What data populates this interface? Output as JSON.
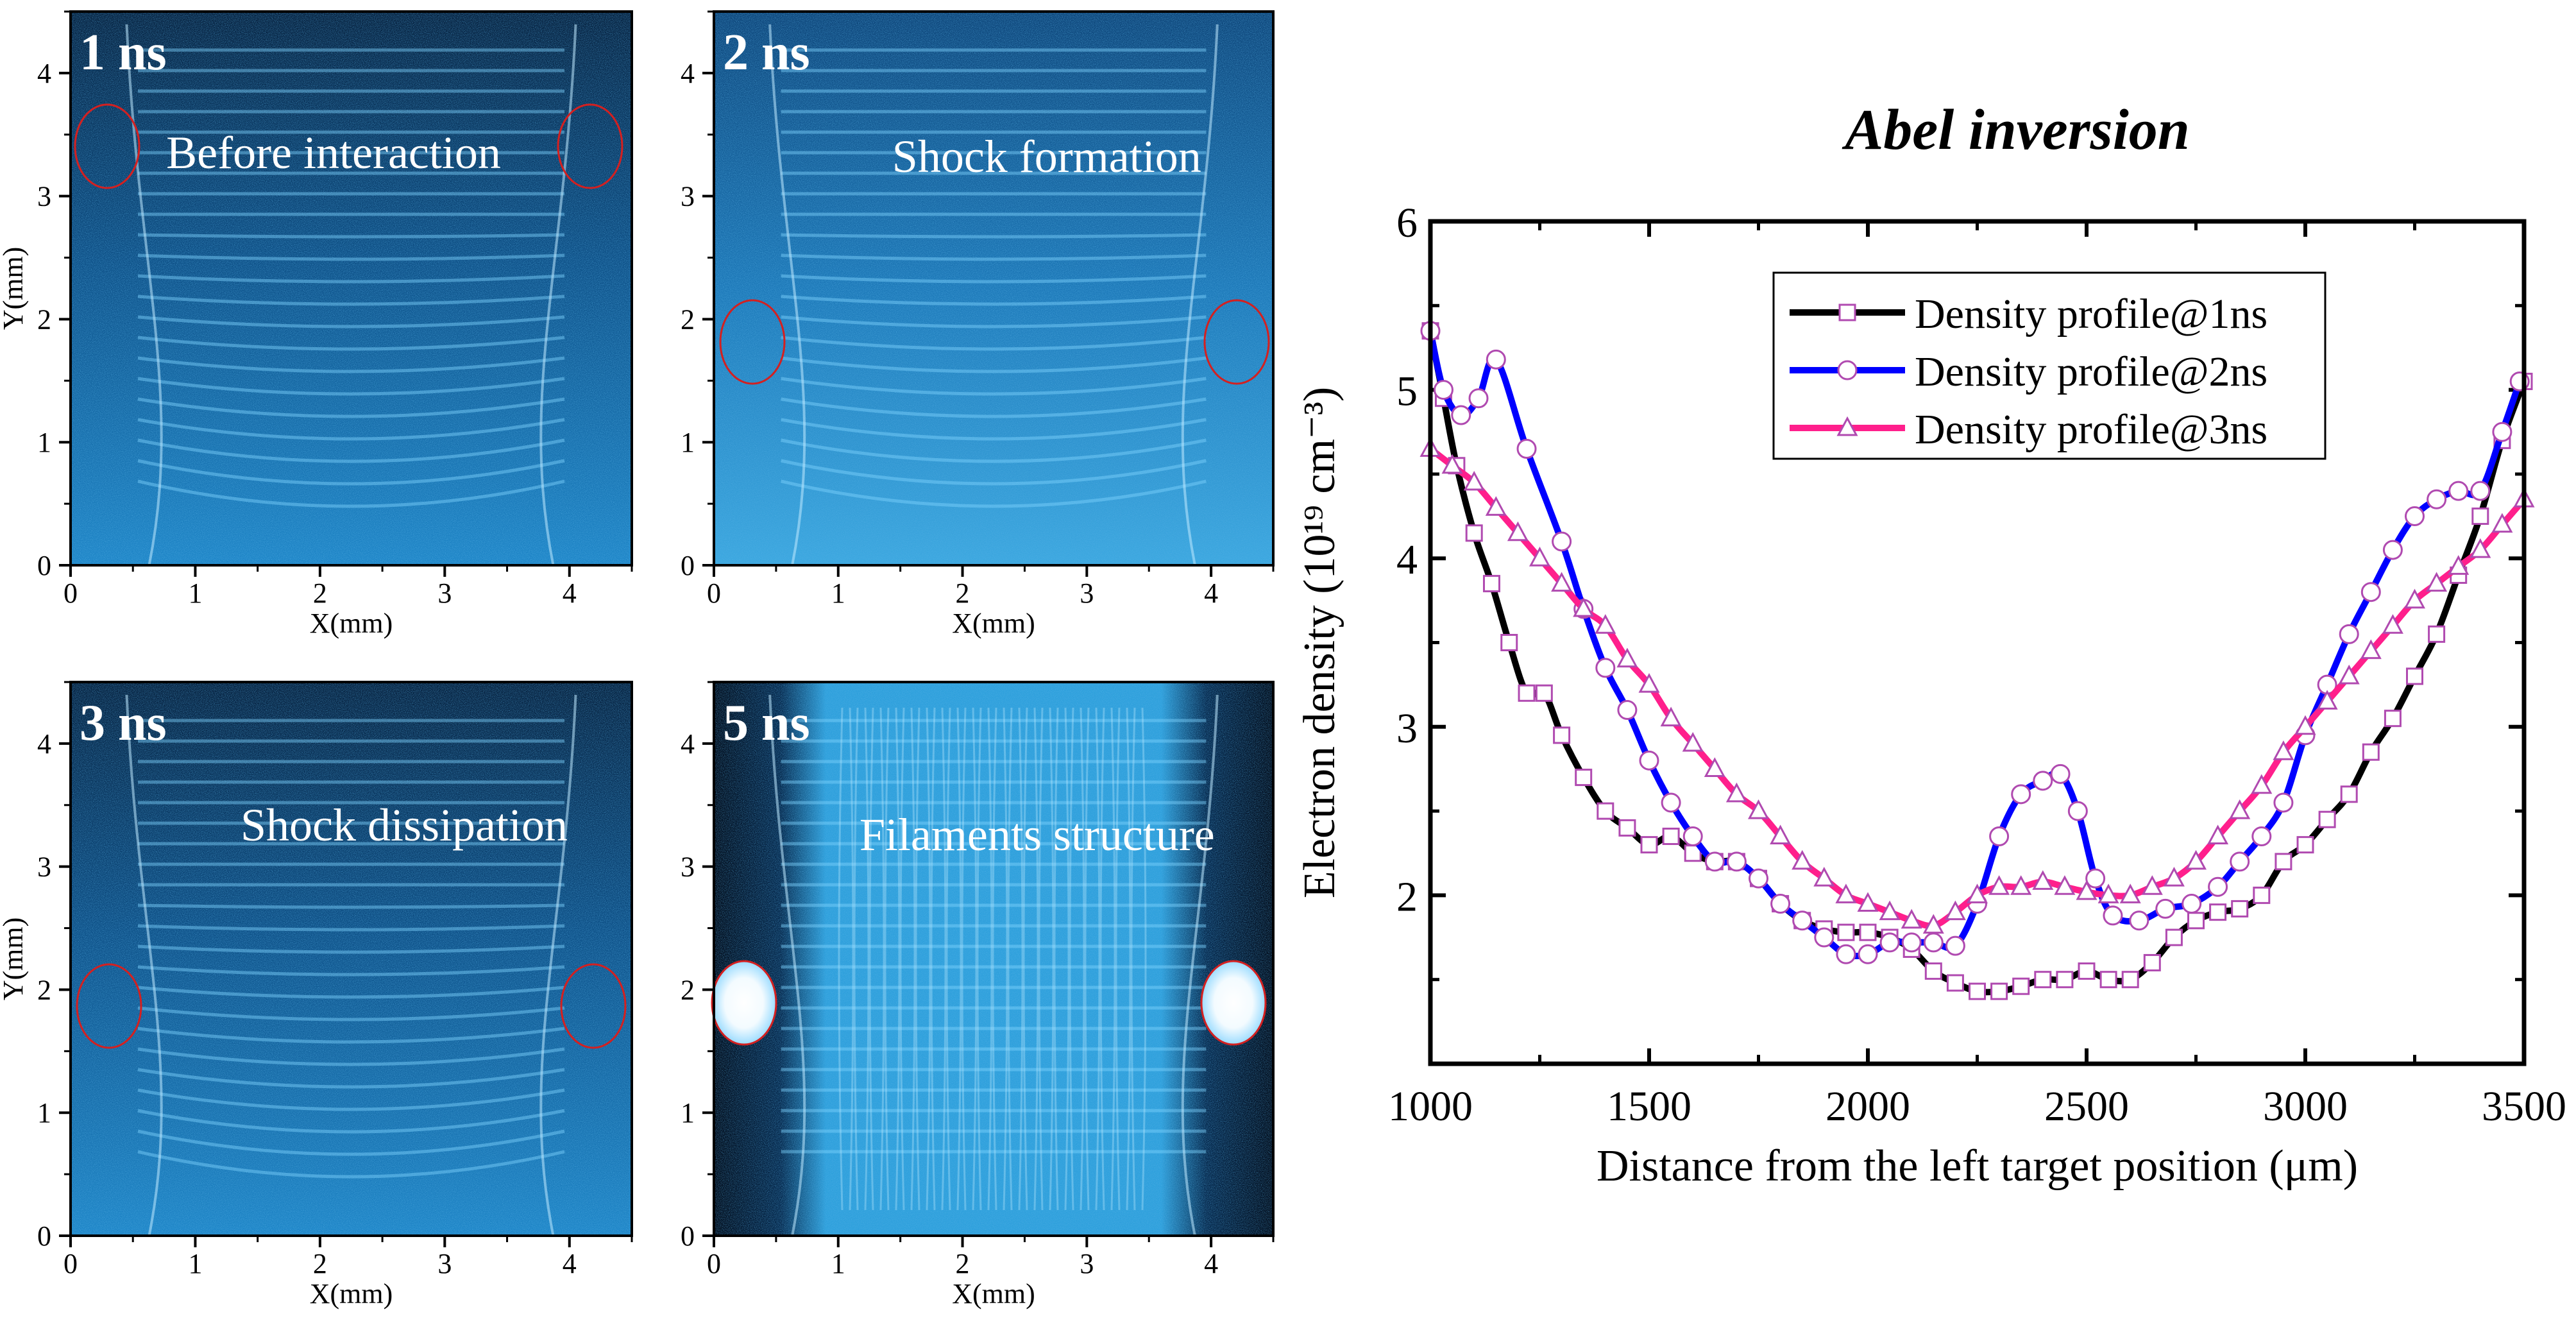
{
  "panels": [
    {
      "time_label": "1 ns",
      "caption": "Before interaction",
      "xlabel": "X(mm)",
      "ylabel": "Y(mm)",
      "xticks": [
        "0",
        "1",
        "2",
        "3",
        "4"
      ],
      "yticks": [
        "0",
        "1",
        "2",
        "3",
        "4"
      ]
    },
    {
      "time_label": "2 ns",
      "caption": "Shock formation",
      "xlabel": "X(mm)",
      "ylabel": "",
      "xticks": [
        "0",
        "1",
        "2",
        "3",
        "4"
      ],
      "yticks": [
        "0",
        "1",
        "2",
        "3",
        "4"
      ]
    },
    {
      "time_label": "3 ns",
      "caption": "Shock dissipation",
      "xlabel": "X(mm)",
      "ylabel": "Y(mm)",
      "xticks": [
        "0",
        "1",
        "2",
        "3",
        "4"
      ],
      "yticks": [
        "0",
        "1",
        "2",
        "3",
        "4"
      ]
    },
    {
      "time_label": "5 ns",
      "caption": "Filaments structure",
      "xlabel": "X(mm)",
      "ylabel": "",
      "xticks": [
        "0",
        "1",
        "2",
        "3",
        "4"
      ],
      "yticks": [
        "0",
        "1",
        "2",
        "3",
        "4"
      ]
    }
  ],
  "colors": {
    "series_1ns": "#000000",
    "series_2ns": "#0000ff",
    "series_3ns": "#ff1f8c",
    "marker_1ns": "#b04ab0",
    "marker_2ns": "#b04ab0",
    "marker_3ns": "#b04ab0",
    "circle": "#d42020"
  },
  "chart_data": {
    "type": "line",
    "title": "Abel inversion",
    "xlabel": "Distance from the left target position (μm)",
    "ylabel": "Electron density (10¹⁹ cm⁻³)",
    "xlim": [
      1000,
      3500
    ],
    "ylim": [
      1,
      6
    ],
    "xticks": [
      1000,
      1500,
      2000,
      2500,
      3000,
      3500
    ],
    "yticks": [
      2,
      3,
      4,
      5,
      6
    ],
    "legend_position": "top-center",
    "series": [
      {
        "name": "Density profile@1ns",
        "marker": "square",
        "x": [
          1000,
          1030,
          1060,
          1100,
          1140,
          1180,
          1220,
          1260,
          1300,
          1350,
          1400,
          1450,
          1500,
          1550,
          1600,
          1650,
          1700,
          1750,
          1800,
          1850,
          1900,
          1950,
          2000,
          2050,
          2100,
          2150,
          2200,
          2250,
          2300,
          2350,
          2400,
          2450,
          2500,
          2550,
          2600,
          2650,
          2700,
          2750,
          2800,
          2850,
          2900,
          2950,
          3000,
          3050,
          3100,
          3150,
          3200,
          3250,
          3300,
          3350,
          3400,
          3450,
          3500
        ],
        "values": [
          5.35,
          4.95,
          4.55,
          4.15,
          3.85,
          3.5,
          3.2,
          3.2,
          2.95,
          2.7,
          2.5,
          2.4,
          2.3,
          2.35,
          2.25,
          2.2,
          2.2,
          2.1,
          1.95,
          1.85,
          1.8,
          1.78,
          1.78,
          1.75,
          1.68,
          1.55,
          1.48,
          1.43,
          1.43,
          1.46,
          1.5,
          1.5,
          1.55,
          1.5,
          1.5,
          1.6,
          1.75,
          1.85,
          1.9,
          1.92,
          2.0,
          2.2,
          2.3,
          2.45,
          2.6,
          2.85,
          3.05,
          3.3,
          3.55,
          3.9,
          4.25,
          4.7,
          5.05
        ]
      },
      {
        "name": "Density profile@2ns",
        "marker": "circle",
        "x": [
          1000,
          1030,
          1070,
          1110,
          1150,
          1220,
          1300,
          1350,
          1400,
          1450,
          1500,
          1550,
          1600,
          1650,
          1700,
          1750,
          1800,
          1850,
          1900,
          1950,
          2000,
          2050,
          2100,
          2150,
          2200,
          2250,
          2300,
          2350,
          2400,
          2440,
          2480,
          2520,
          2560,
          2620,
          2680,
          2740,
          2800,
          2850,
          2900,
          2950,
          3000,
          3050,
          3100,
          3150,
          3200,
          3250,
          3300,
          3350,
          3400,
          3450,
          3490
        ],
        "values": [
          5.35,
          5.0,
          4.85,
          4.95,
          5.18,
          4.65,
          4.1,
          3.7,
          3.35,
          3.1,
          2.8,
          2.55,
          2.35,
          2.2,
          2.2,
          2.1,
          1.95,
          1.85,
          1.75,
          1.65,
          1.65,
          1.72,
          1.72,
          1.72,
          1.7,
          1.95,
          2.35,
          2.6,
          2.68,
          2.72,
          2.5,
          2.1,
          1.88,
          1.85,
          1.92,
          1.95,
          2.05,
          2.2,
          2.35,
          2.55,
          2.95,
          3.25,
          3.55,
          3.8,
          4.05,
          4.25,
          4.35,
          4.4,
          4.4,
          4.75,
          5.05
        ]
      },
      {
        "name": "Density profile@3ns",
        "marker": "triangle",
        "x": [
          1000,
          1050,
          1100,
          1150,
          1200,
          1250,
          1300,
          1350,
          1400,
          1450,
          1500,
          1550,
          1600,
          1650,
          1700,
          1750,
          1800,
          1850,
          1900,
          1950,
          2000,
          2050,
          2100,
          2150,
          2200,
          2250,
          2300,
          2350,
          2400,
          2450,
          2500,
          2550,
          2600,
          2650,
          2700,
          2750,
          2800,
          2850,
          2900,
          2950,
          3000,
          3050,
          3100,
          3150,
          3200,
          3250,
          3300,
          3350,
          3400,
          3450,
          3500
        ],
        "values": [
          4.65,
          4.55,
          4.45,
          4.3,
          4.15,
          4.0,
          3.85,
          3.7,
          3.6,
          3.4,
          3.25,
          3.05,
          2.9,
          2.75,
          2.6,
          2.5,
          2.35,
          2.2,
          2.1,
          2.0,
          1.95,
          1.9,
          1.85,
          1.82,
          1.9,
          2.0,
          2.05,
          2.05,
          2.08,
          2.05,
          2.02,
          2.0,
          2.0,
          2.05,
          2.1,
          2.2,
          2.35,
          2.5,
          2.65,
          2.85,
          3.0,
          3.15,
          3.3,
          3.45,
          3.6,
          3.75,
          3.85,
          3.95,
          4.05,
          4.2,
          4.35
        ]
      }
    ]
  }
}
